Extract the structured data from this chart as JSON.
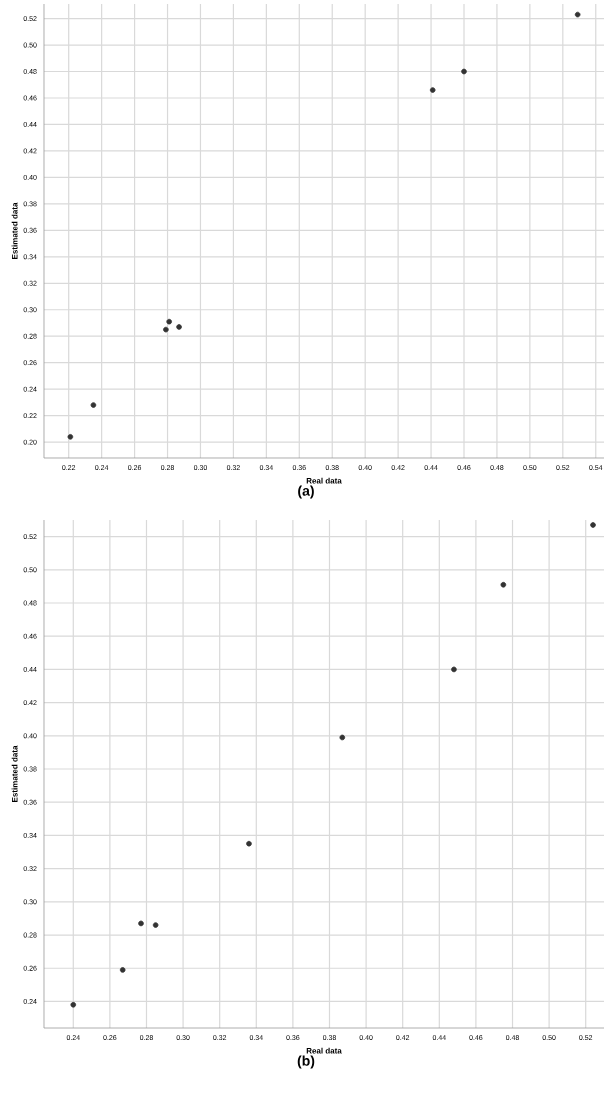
{
  "chart_data": [
    {
      "type": "scatter",
      "xlabel": "Real data",
      "ylabel": "Estimated data",
      "annotations": [
        "(a)"
      ],
      "grid": true,
      "xlim": [
        0.205,
        0.545
      ],
      "ylim": [
        0.188,
        0.531
      ],
      "xticks": [
        {
          "value": 0.22,
          "label": "0.22"
        },
        {
          "value": 0.24,
          "label": "0.24"
        },
        {
          "value": 0.26,
          "label": "0.26"
        },
        {
          "value": 0.28,
          "label": "0.28"
        },
        {
          "value": 0.3,
          "label": "0.30"
        },
        {
          "value": 0.32,
          "label": "0.32"
        },
        {
          "value": 0.34,
          "label": "0.34"
        },
        {
          "value": 0.36,
          "label": "0.36"
        },
        {
          "value": 0.38,
          "label": "0.38"
        },
        {
          "value": 0.4,
          "label": "0.40"
        },
        {
          "value": 0.42,
          "label": "0.42"
        },
        {
          "value": 0.44,
          "label": "0.44"
        },
        {
          "value": 0.46,
          "label": "0.46"
        },
        {
          "value": 0.48,
          "label": "0.48"
        },
        {
          "value": 0.5,
          "label": "0.50"
        },
        {
          "value": 0.52,
          "label": "0.52"
        },
        {
          "value": 0.54,
          "label": "0.54"
        }
      ],
      "yticks": [
        {
          "value": 0.2,
          "label": "0.20"
        },
        {
          "value": 0.22,
          "label": "0.22"
        },
        {
          "value": 0.24,
          "label": "0.24"
        },
        {
          "value": 0.26,
          "label": "0.26"
        },
        {
          "value": 0.28,
          "label": "0.28"
        },
        {
          "value": 0.3,
          "label": "0.30"
        },
        {
          "value": 0.32,
          "label": "0.32"
        },
        {
          "value": 0.34,
          "label": "0.34"
        },
        {
          "value": 0.36,
          "label": "0.36"
        },
        {
          "value": 0.38,
          "label": "0.38"
        },
        {
          "value": 0.4,
          "label": "0.40"
        },
        {
          "value": 0.42,
          "label": "0.42"
        },
        {
          "value": 0.44,
          "label": "0.44"
        },
        {
          "value": 0.46,
          "label": "0.46"
        },
        {
          "value": 0.48,
          "label": "0.48"
        },
        {
          "value": 0.5,
          "label": "0.50"
        },
        {
          "value": 0.52,
          "label": "0.52"
        }
      ],
      "series": [
        {
          "color": "#333333",
          "x": [
            0.221,
            0.235,
            0.279,
            0.281,
            0.287,
            0.441,
            0.46,
            0.529
          ],
          "values": [
            0.204,
            0.228,
            0.285,
            0.291,
            0.287,
            0.466,
            0.48,
            0.523
          ]
        }
      ]
    },
    {
      "type": "scatter",
      "xlabel": "Real data",
      "ylabel": "Estimated data",
      "annotations": [
        "(b)"
      ],
      "grid": true,
      "xlim": [
        0.224,
        0.53
      ],
      "ylim": [
        0.224,
        0.53
      ],
      "xticks": [
        {
          "value": 0.24,
          "label": "0.24"
        },
        {
          "value": 0.26,
          "label": "0.26"
        },
        {
          "value": 0.28,
          "label": "0.28"
        },
        {
          "value": 0.3,
          "label": "0.30"
        },
        {
          "value": 0.32,
          "label": "0.32"
        },
        {
          "value": 0.34,
          "label": "0.34"
        },
        {
          "value": 0.36,
          "label": "0.36"
        },
        {
          "value": 0.38,
          "label": "0.38"
        },
        {
          "value": 0.4,
          "label": "0.40"
        },
        {
          "value": 0.42,
          "label": "0.42"
        },
        {
          "value": 0.44,
          "label": "0.44"
        },
        {
          "value": 0.46,
          "label": "0.46"
        },
        {
          "value": 0.48,
          "label": "0.48"
        },
        {
          "value": 0.5,
          "label": "0.50"
        },
        {
          "value": 0.52,
          "label": "0.52"
        }
      ],
      "yticks": [
        {
          "value": 0.24,
          "label": "0.24"
        },
        {
          "value": 0.26,
          "label": "0.26"
        },
        {
          "value": 0.28,
          "label": "0.28"
        },
        {
          "value": 0.3,
          "label": "0.30"
        },
        {
          "value": 0.32,
          "label": "0.32"
        },
        {
          "value": 0.34,
          "label": "0.34"
        },
        {
          "value": 0.36,
          "label": "0.36"
        },
        {
          "value": 0.38,
          "label": "0.38"
        },
        {
          "value": 0.4,
          "label": "0.40"
        },
        {
          "value": 0.42,
          "label": "0.42"
        },
        {
          "value": 0.44,
          "label": "0.44"
        },
        {
          "value": 0.46,
          "label": "0.46"
        },
        {
          "value": 0.48,
          "label": "0.48"
        },
        {
          "value": 0.5,
          "label": "0.50"
        },
        {
          "value": 0.52,
          "label": "0.52"
        }
      ],
      "series": [
        {
          "color": "#333333",
          "x": [
            0.24,
            0.267,
            0.277,
            0.285,
            0.336,
            0.387,
            0.448,
            0.475,
            0.524
          ],
          "values": [
            0.238,
            0.259,
            0.287,
            0.286,
            0.335,
            0.399,
            0.44,
            0.491,
            0.527
          ]
        }
      ]
    }
  ]
}
